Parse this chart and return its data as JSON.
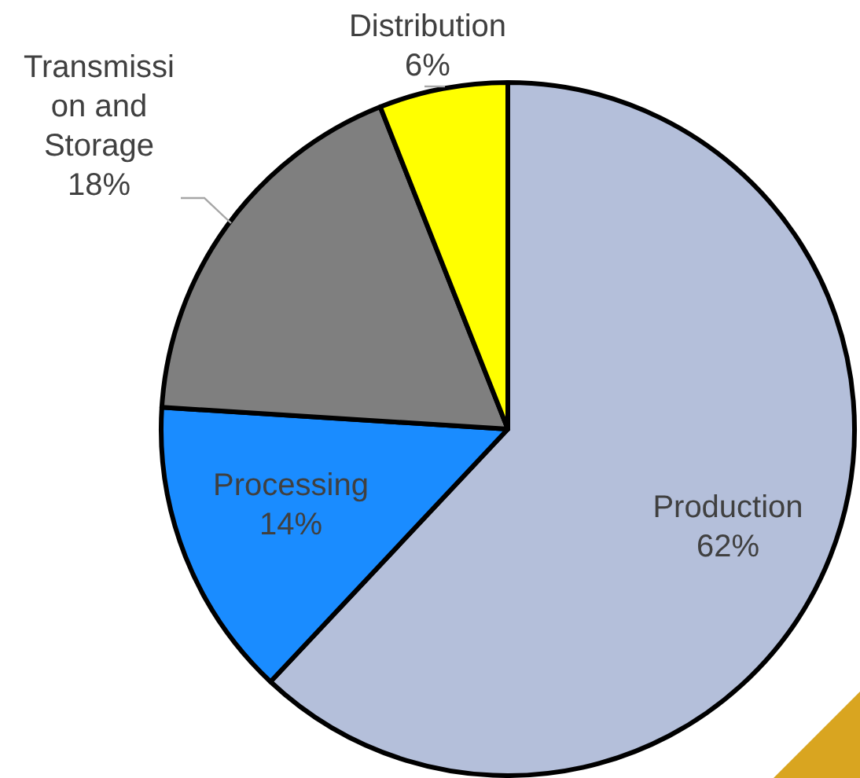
{
  "chart_data": {
    "type": "pie",
    "categories": [
      "Production",
      "Processing",
      "Transmission and Storage",
      "Distribution"
    ],
    "values": [
      62,
      14,
      18,
      6
    ],
    "colors": [
      "#b4bfda",
      "#1a8cff",
      "#7f7f7f",
      "#ffff00"
    ],
    "value_labels": [
      "62%",
      "14%",
      "18%",
      "6%"
    ],
    "legend": false
  }
}
